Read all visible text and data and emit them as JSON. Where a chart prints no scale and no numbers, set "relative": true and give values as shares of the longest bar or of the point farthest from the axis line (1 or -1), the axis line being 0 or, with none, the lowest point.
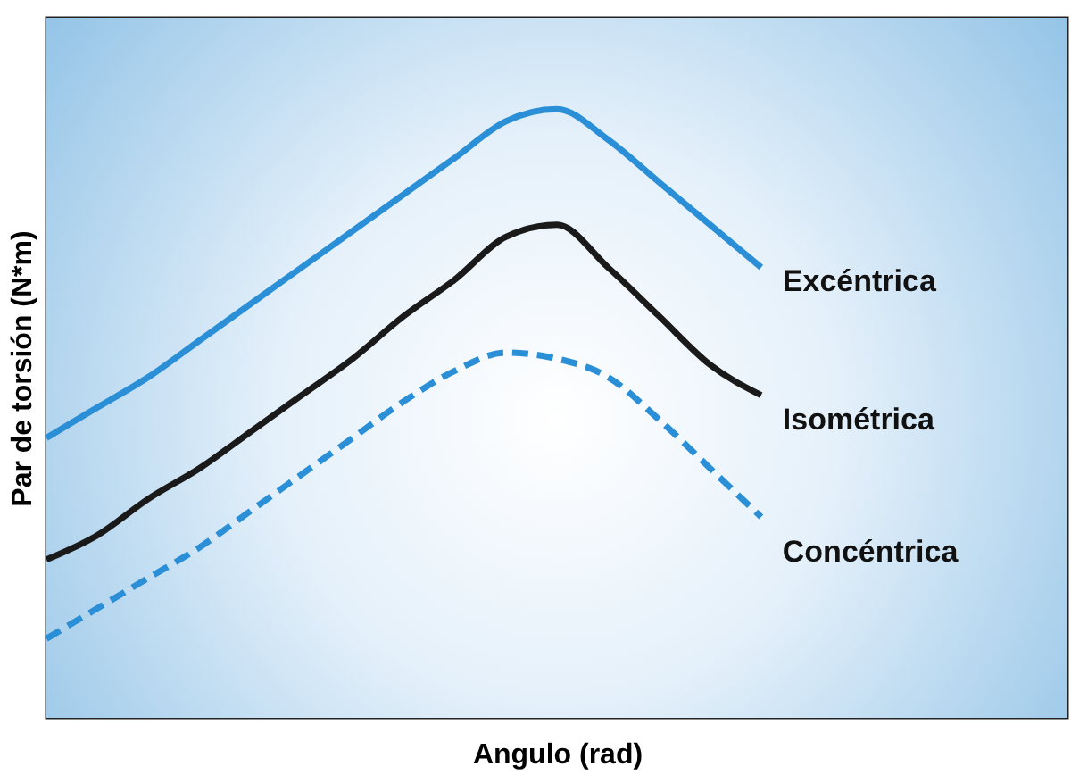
{
  "chart_data": {
    "type": "line",
    "xlabel": "Angulo (rad)",
    "ylabel": "Par de torsión (N*m)",
    "relative": true,
    "grid": false,
    "marker": "none",
    "categories": [
      null,
      null,
      null,
      null,
      null,
      null,
      null,
      null,
      null,
      null,
      null,
      null,
      null,
      null,
      null,
      null,
      null,
      null,
      null,
      null,
      null
    ],
    "series": [
      {
        "name": "Excéntrica",
        "color": "#2a8fd6",
        "line_style": "solid",
        "values": [
          0.46,
          0.51,
          0.56,
          0.62,
          0.68,
          0.74,
          0.8,
          0.86,
          0.92,
          0.98,
          1,
          0.95,
          0.88,
          0.81,
          0.74,
          null,
          null,
          null,
          null,
          null,
          null
        ]
      },
      {
        "name": "Isométrica",
        "color": "#1a1a1a",
        "line_style": "solid",
        "values": [
          0.26,
          0.3,
          0.36,
          0.41,
          0.47,
          0.53,
          0.59,
          0.66,
          0.72,
          0.79,
          0.81,
          0.74,
          0.66,
          0.58,
          0.53,
          null,
          null,
          null,
          null,
          null,
          null
        ]
      },
      {
        "name": "Concéntrica",
        "color": "#2a8fd6",
        "line_style": "dashed",
        "values": [
          0.13,
          0.18,
          0.23,
          0.28,
          0.34,
          0.4,
          0.46,
          0.52,
          0.57,
          0.6,
          0.59,
          0.56,
          0.49,
          0.41,
          0.33,
          null,
          null,
          null,
          null,
          null,
          null
        ]
      }
    ]
  }
}
